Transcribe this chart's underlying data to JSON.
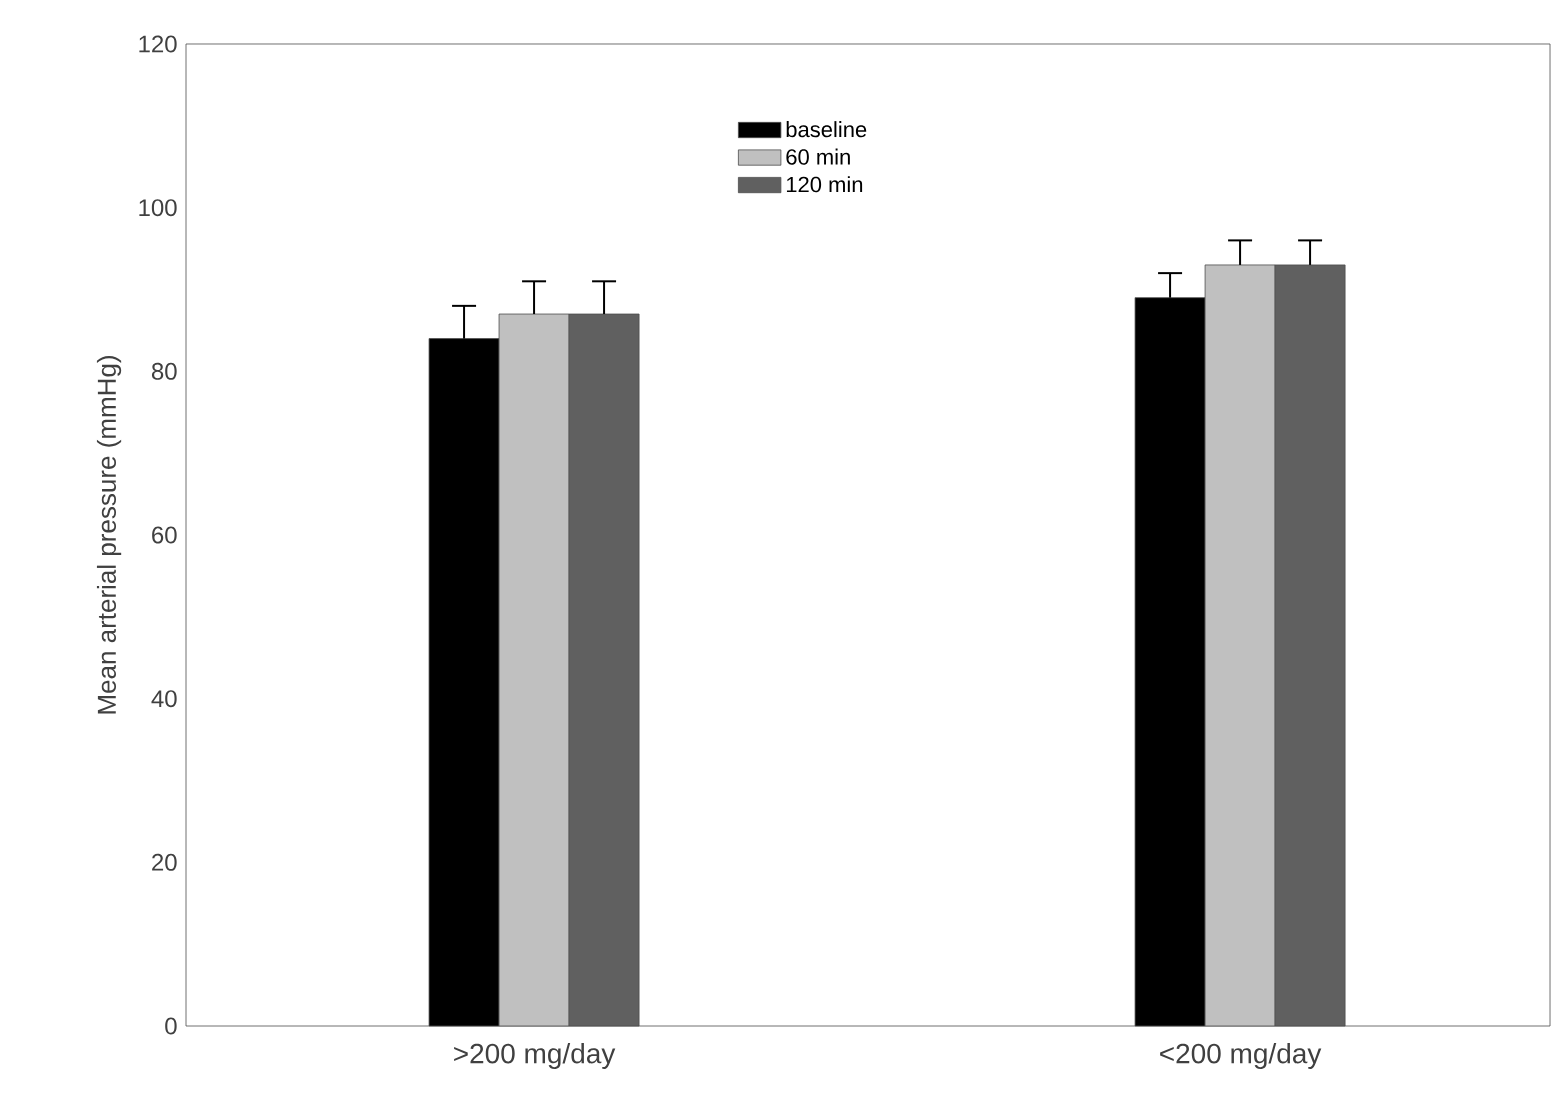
{
  "chart_data": {
    "type": "bar",
    "ylabel": "Mean arterial pressure (mmHg)",
    "categories": [
      ">200 mg/day",
      "<200 mg/day"
    ],
    "series": [
      {
        "name": "baseline",
        "color": "#000000",
        "values": [
          84,
          89
        ],
        "errors": [
          4,
          3
        ]
      },
      {
        "name": "60 min",
        "color": "#c0c0c0",
        "values": [
          87,
          93
        ],
        "errors": [
          4,
          3
        ]
      },
      {
        "name": "120 min",
        "color": "#606060",
        "values": [
          87,
          93
        ],
        "errors": [
          4,
          3
        ]
      }
    ],
    "ylim": [
      0,
      120
    ],
    "yticks": [
      0,
      20,
      40,
      60,
      80,
      100,
      120
    ],
    "legend": "top",
    "grid": false
  }
}
